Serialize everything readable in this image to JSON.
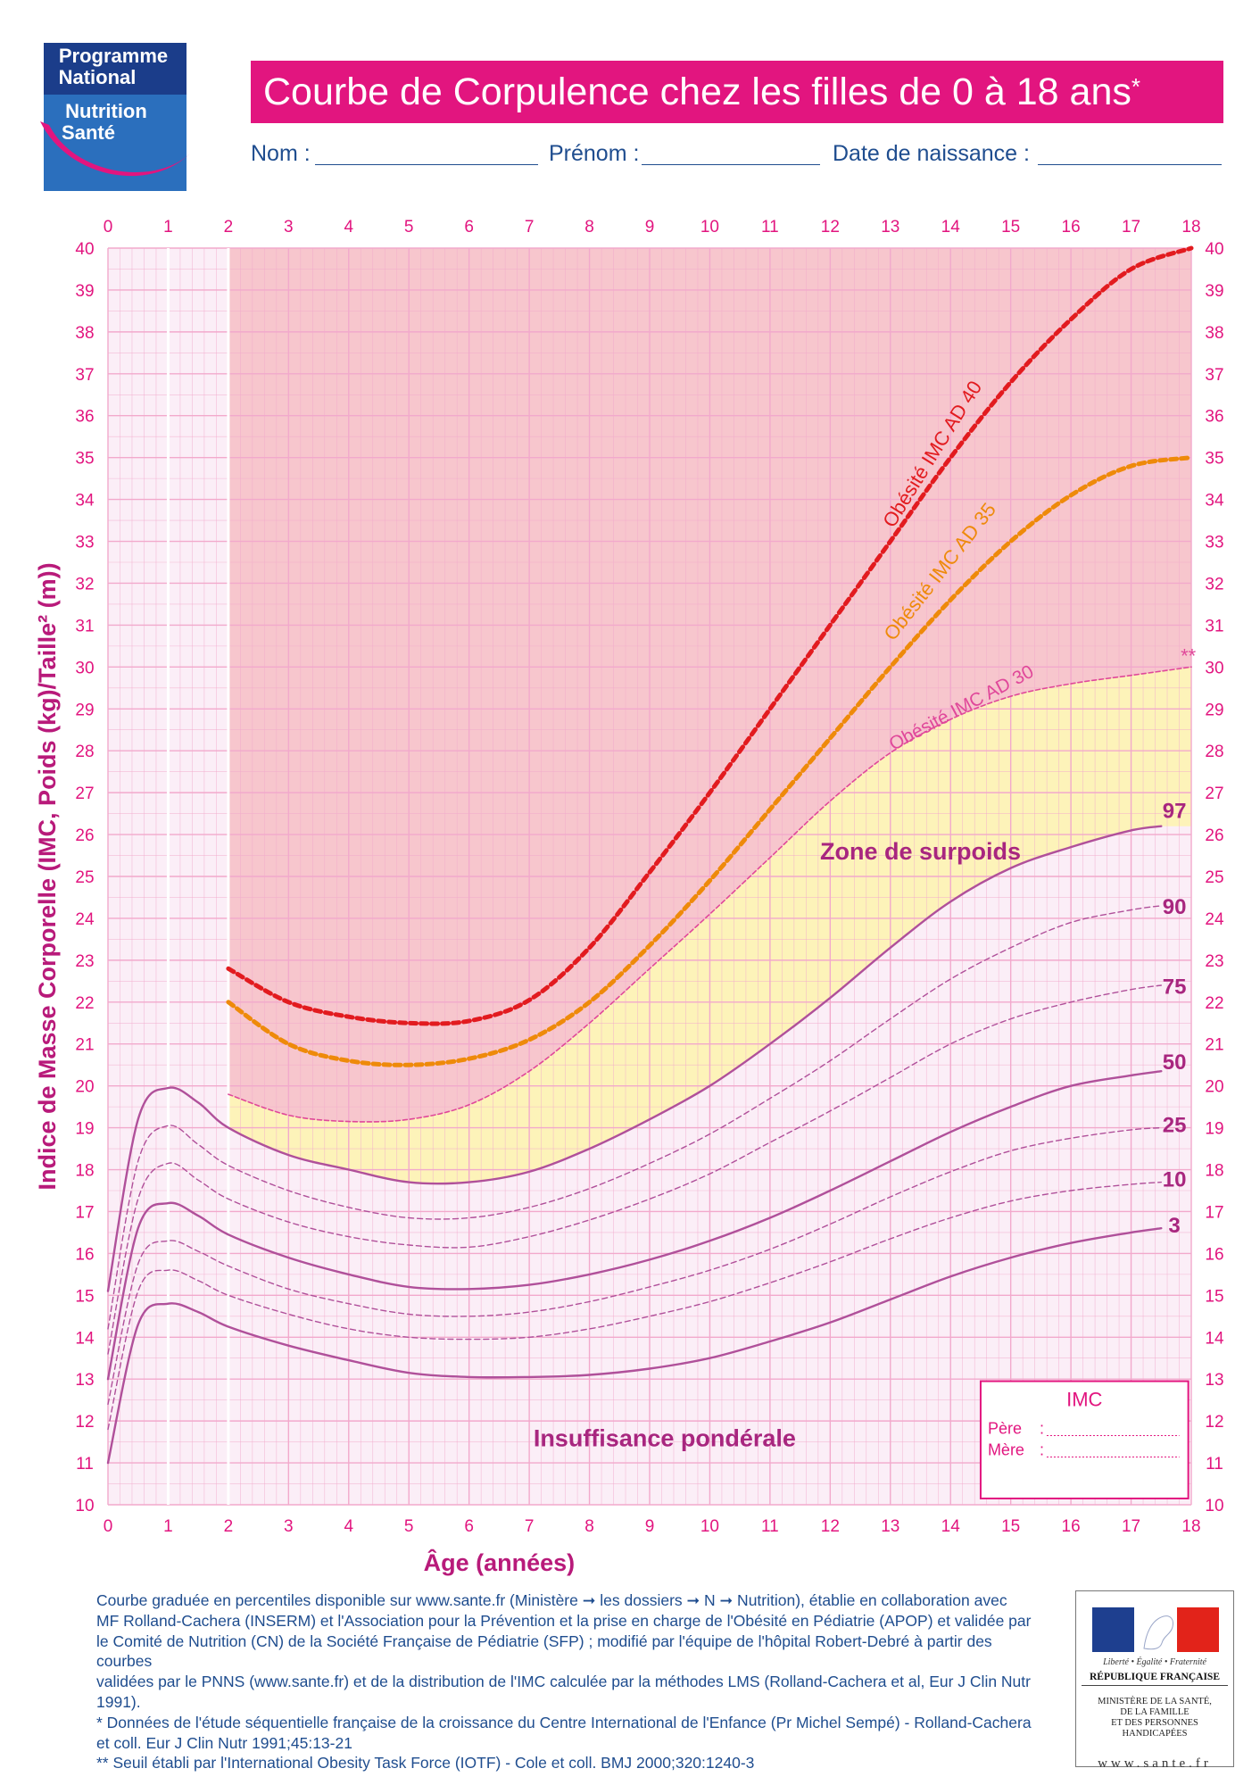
{
  "header": {
    "logo": {
      "line1": "Programme",
      "line2": "National",
      "line3": "Nutrition",
      "line4": "Santé"
    },
    "title": "Courbe de Corpulence chez les filles de 0 à 18 ans",
    "title_mark": "*",
    "form": {
      "nom_label": "Nom :",
      "prenom_label": "Prénom :",
      "ddn_label": "Date de naissance :"
    }
  },
  "colors": {
    "accent": "#e2157f",
    "percentile_curve": "#b0509a",
    "obesity_40": "#e21b1f",
    "obesity_35": "#ee8a0a",
    "obesity_30": "#e0489a",
    "zone_obesity": "#f7c6cd",
    "zone_overweight": "#fdf3b9",
    "zone_normal": "#fbeef7",
    "grid": "#f2a9cc",
    "footer_text": "#1f4d8f"
  },
  "chart_data": {
    "type": "line",
    "title": "Courbe de Corpulence chez les filles de 0 à 18 ans",
    "xlabel": "Âge (années)",
    "ylabel": "Indice de Masse Corporelle (IMC, Poids (kg)/Taille² (m))",
    "xlim": [
      0,
      18
    ],
    "ylim": [
      10,
      40
    ],
    "x_ticks": [
      "0",
      "1",
      "2",
      "3",
      "4",
      "5",
      "6",
      "7",
      "8",
      "9",
      "10",
      "11",
      "12",
      "13",
      "14",
      "15",
      "16",
      "17",
      "18"
    ],
    "y_ticks": [
      "10",
      "11",
      "12",
      "13",
      "14",
      "15",
      "16",
      "17",
      "18",
      "19",
      "20",
      "21",
      "22",
      "23",
      "24",
      "25",
      "26",
      "27",
      "28",
      "29",
      "30",
      "31",
      "32",
      "33",
      "34",
      "35",
      "36",
      "37",
      "38",
      "39",
      "40"
    ],
    "grid": true,
    "series": [
      {
        "name": "97",
        "style": "solid",
        "x": [
          0,
          0.5,
          1,
          1.5,
          2,
          3,
          4,
          5,
          6,
          7,
          8,
          9,
          10,
          11,
          12,
          13,
          14,
          15,
          16,
          17,
          17.5
        ],
        "y": [
          15.1,
          19.2,
          19.95,
          19.6,
          19.0,
          18.35,
          18.0,
          17.7,
          17.7,
          17.95,
          18.5,
          19.2,
          20.0,
          21.0,
          22.1,
          23.3,
          24.4,
          25.2,
          25.7,
          26.1,
          26.2
        ]
      },
      {
        "name": "90",
        "style": "dashed",
        "x": [
          0,
          0.5,
          1,
          1.5,
          2,
          3,
          4,
          5,
          6,
          7,
          8,
          9,
          10,
          11,
          12,
          13,
          14,
          15,
          16,
          17,
          17.5
        ],
        "y": [
          14.2,
          18.2,
          19.05,
          18.6,
          18.1,
          17.5,
          17.1,
          16.85,
          16.85,
          17.1,
          17.55,
          18.15,
          18.85,
          19.7,
          20.6,
          21.6,
          22.55,
          23.3,
          23.9,
          24.2,
          24.3
        ]
      },
      {
        "name": "75",
        "style": "dashed",
        "x": [
          0,
          0.5,
          1,
          1.5,
          2,
          3,
          4,
          5,
          6,
          7,
          8,
          9,
          10,
          11,
          12,
          13,
          14,
          15,
          16,
          17,
          17.5
        ],
        "y": [
          13.6,
          17.3,
          18.15,
          17.75,
          17.3,
          16.75,
          16.4,
          16.2,
          16.15,
          16.4,
          16.8,
          17.3,
          17.9,
          18.65,
          19.4,
          20.2,
          21.0,
          21.6,
          22.0,
          22.3,
          22.4
        ]
      },
      {
        "name": "50",
        "style": "solid",
        "x": [
          0,
          0.5,
          1,
          1.5,
          2,
          3,
          4,
          5,
          6,
          7,
          8,
          9,
          10,
          11,
          12,
          13,
          14,
          15,
          16,
          17,
          17.5
        ],
        "y": [
          13.0,
          16.6,
          17.2,
          16.9,
          16.45,
          15.9,
          15.5,
          15.2,
          15.15,
          15.25,
          15.5,
          15.85,
          16.3,
          16.85,
          17.5,
          18.2,
          18.9,
          19.5,
          20.0,
          20.25,
          20.35
        ]
      },
      {
        "name": "25",
        "style": "dashed",
        "x": [
          0,
          0.5,
          1,
          1.5,
          2,
          3,
          4,
          5,
          6,
          7,
          8,
          9,
          10,
          11,
          12,
          13,
          14,
          15,
          16,
          17,
          17.5
        ],
        "y": [
          12.4,
          15.75,
          16.3,
          16.05,
          15.7,
          15.15,
          14.8,
          14.55,
          14.5,
          14.6,
          14.85,
          15.2,
          15.6,
          16.1,
          16.7,
          17.35,
          17.95,
          18.45,
          18.75,
          18.95,
          19.0
        ]
      },
      {
        "name": "10",
        "style": "dashed",
        "x": [
          0,
          0.5,
          1,
          1.5,
          2,
          3,
          4,
          5,
          6,
          7,
          8,
          9,
          10,
          11,
          12,
          13,
          14,
          15,
          16,
          17,
          17.5
        ],
        "y": [
          11.8,
          15.1,
          15.6,
          15.35,
          15.0,
          14.55,
          14.2,
          14.0,
          13.95,
          14.0,
          14.2,
          14.5,
          14.85,
          15.3,
          15.8,
          16.35,
          16.85,
          17.25,
          17.5,
          17.65,
          17.7
        ]
      },
      {
        "name": "3",
        "style": "solid",
        "x": [
          0,
          0.5,
          1,
          1.5,
          2,
          3,
          4,
          5,
          6,
          7,
          8,
          9,
          10,
          11,
          12,
          13,
          14,
          15,
          16,
          17,
          17.5
        ],
        "y": [
          11.0,
          14.3,
          14.8,
          14.6,
          14.25,
          13.8,
          13.45,
          13.15,
          13.05,
          13.05,
          13.1,
          13.25,
          13.5,
          13.9,
          14.35,
          14.9,
          15.45,
          15.9,
          16.25,
          16.5,
          16.6
        ]
      },
      {
        "name": "Obésité IMC AD 40",
        "style": "dotted",
        "x": [
          2,
          3,
          4,
          5,
          6,
          7,
          8,
          9,
          10,
          11,
          12,
          13,
          14,
          15,
          16,
          17,
          18
        ],
        "y": [
          22.8,
          22.0,
          21.65,
          21.5,
          21.55,
          22.05,
          23.3,
          25.1,
          27.0,
          29.0,
          31.0,
          33.0,
          35.0,
          36.8,
          38.3,
          39.5,
          40.0
        ]
      },
      {
        "name": "Obésité IMC AD 35",
        "style": "dotted",
        "x": [
          2,
          3,
          4,
          5,
          6,
          7,
          8,
          9,
          10,
          11,
          12,
          13,
          14,
          15,
          16,
          17,
          18
        ],
        "y": [
          22.0,
          21.0,
          20.6,
          20.5,
          20.65,
          21.1,
          22.0,
          23.35,
          24.9,
          26.6,
          28.3,
          30.0,
          31.6,
          33.0,
          34.1,
          34.8,
          35.0
        ]
      },
      {
        "name": "Obésité IMC AD 30",
        "style": "dashed",
        "x": [
          2,
          3,
          4,
          5,
          6,
          7,
          8,
          9,
          10,
          11,
          12,
          13,
          14,
          15,
          16,
          17,
          18
        ],
        "y": [
          19.8,
          19.3,
          19.15,
          19.2,
          19.55,
          20.35,
          21.5,
          22.8,
          24.1,
          25.45,
          26.8,
          27.95,
          28.75,
          29.3,
          29.6,
          29.8,
          30.0
        ]
      }
    ],
    "annotations": {
      "zone_surpoids": "Zone de surpoids",
      "insuffisance": "Insuffisance pondérale",
      "iotf_mark": "**"
    },
    "imc_box": {
      "title": "IMC",
      "pere_label": "Père",
      "mere_label": "Mère"
    }
  },
  "footer": {
    "line1": "Courbe graduée en percentiles disponible sur www.sante.fr (Ministère ➞ les dossiers ➞ N ➞ Nutrition), établie en collaboration avec",
    "line2": "MF Rolland-Cachera (INSERM) et l'Association pour la Prévention et la prise en charge de l'Obésité en Pédiatrie (APOP) et validée par",
    "line3": "le Comité de Nutrition (CN) de la Société Française de Pédiatrie (SFP) ; modifié par l'équipe de l'hôpital Robert-Debré à partir des courbes",
    "line4": "validées par le PNNS (www.sante.fr) et de la distribution de l'IMC calculée par la méthodes LMS (Rolland-Cachera et al, Eur J Clin Nutr 1991).",
    "line5": "* Données de l'étude séquentielle française de la croissance du Centre International de l'Enfance (Pr Michel Sempé) - Rolland-Cachera",
    "line6": "et coll. Eur J Clin Nutr 1991;45:13-21",
    "line7": "** Seuil établi par l'International Obesity Task Force (IOTF) - Cole et coll. BMJ 2000;320:1240-3"
  },
  "republique": {
    "motto": "Liberté • Égalité • Fraternité",
    "name": "RÉPUBLIQUE FRANÇAISE",
    "ministry_1": "MINISTÈRE DE LA SANTÉ,",
    "ministry_2": "DE LA FAMILLE",
    "ministry_3": "ET DES PERSONNES",
    "ministry_4": "HANDICAPÉES",
    "url": "www.sante.fr"
  }
}
